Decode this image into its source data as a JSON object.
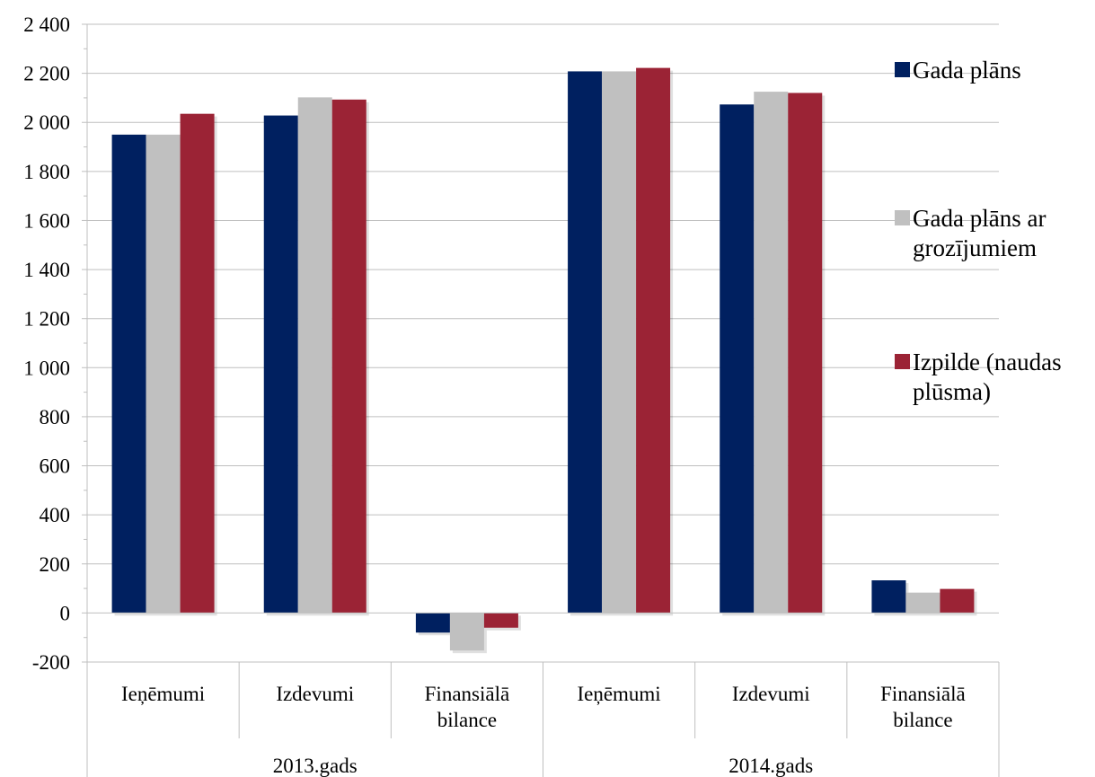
{
  "chart_data": {
    "type": "bar",
    "groups": [
      {
        "label": "2013.gads",
        "categories": [
          [
            "Ieņēmumi"
          ],
          [
            "Izdevumi"
          ],
          [
            "Finansiālā",
            "bilance"
          ]
        ]
      },
      {
        "label": "2014.gads",
        "categories": [
          [
            "Ieņēmumi"
          ],
          [
            "Izdevumi"
          ],
          [
            "Finansiālā",
            "bilance"
          ]
        ]
      }
    ],
    "series": [
      {
        "name": "Gada plāns",
        "color": "#002060",
        "values": [
          1950,
          2028,
          -80,
          2208,
          2073,
          133
        ]
      },
      {
        "name": "Gada plāns ar grozījumiem",
        "legend_lines": [
          "Gada plāns ar",
          "grozījumiem"
        ],
        "color": "#C0C0C0",
        "values": [
          1950,
          2102,
          -153,
          2208,
          2125,
          83
        ]
      },
      {
        "name": "Izpilde (naudas plūsma)",
        "legend_lines": [
          "Izpilde (naudas",
          "plūsma)"
        ],
        "color": "#9B2335",
        "values": [
          2035,
          2093,
          -60,
          2222,
          2120,
          98
        ]
      }
    ],
    "ylim": [
      -200,
      2400
    ],
    "ytick_step": 200,
    "ytick_labels": [
      "-200",
      "0",
      "200",
      "400",
      "600",
      "800",
      "1 000",
      "1 200",
      "1 400",
      "1 600",
      "1 800",
      "2 000",
      "2 200",
      "2 400"
    ],
    "xlabel": "",
    "ylabel": "",
    "title": "",
    "grid": true,
    "legend_position": "right"
  }
}
